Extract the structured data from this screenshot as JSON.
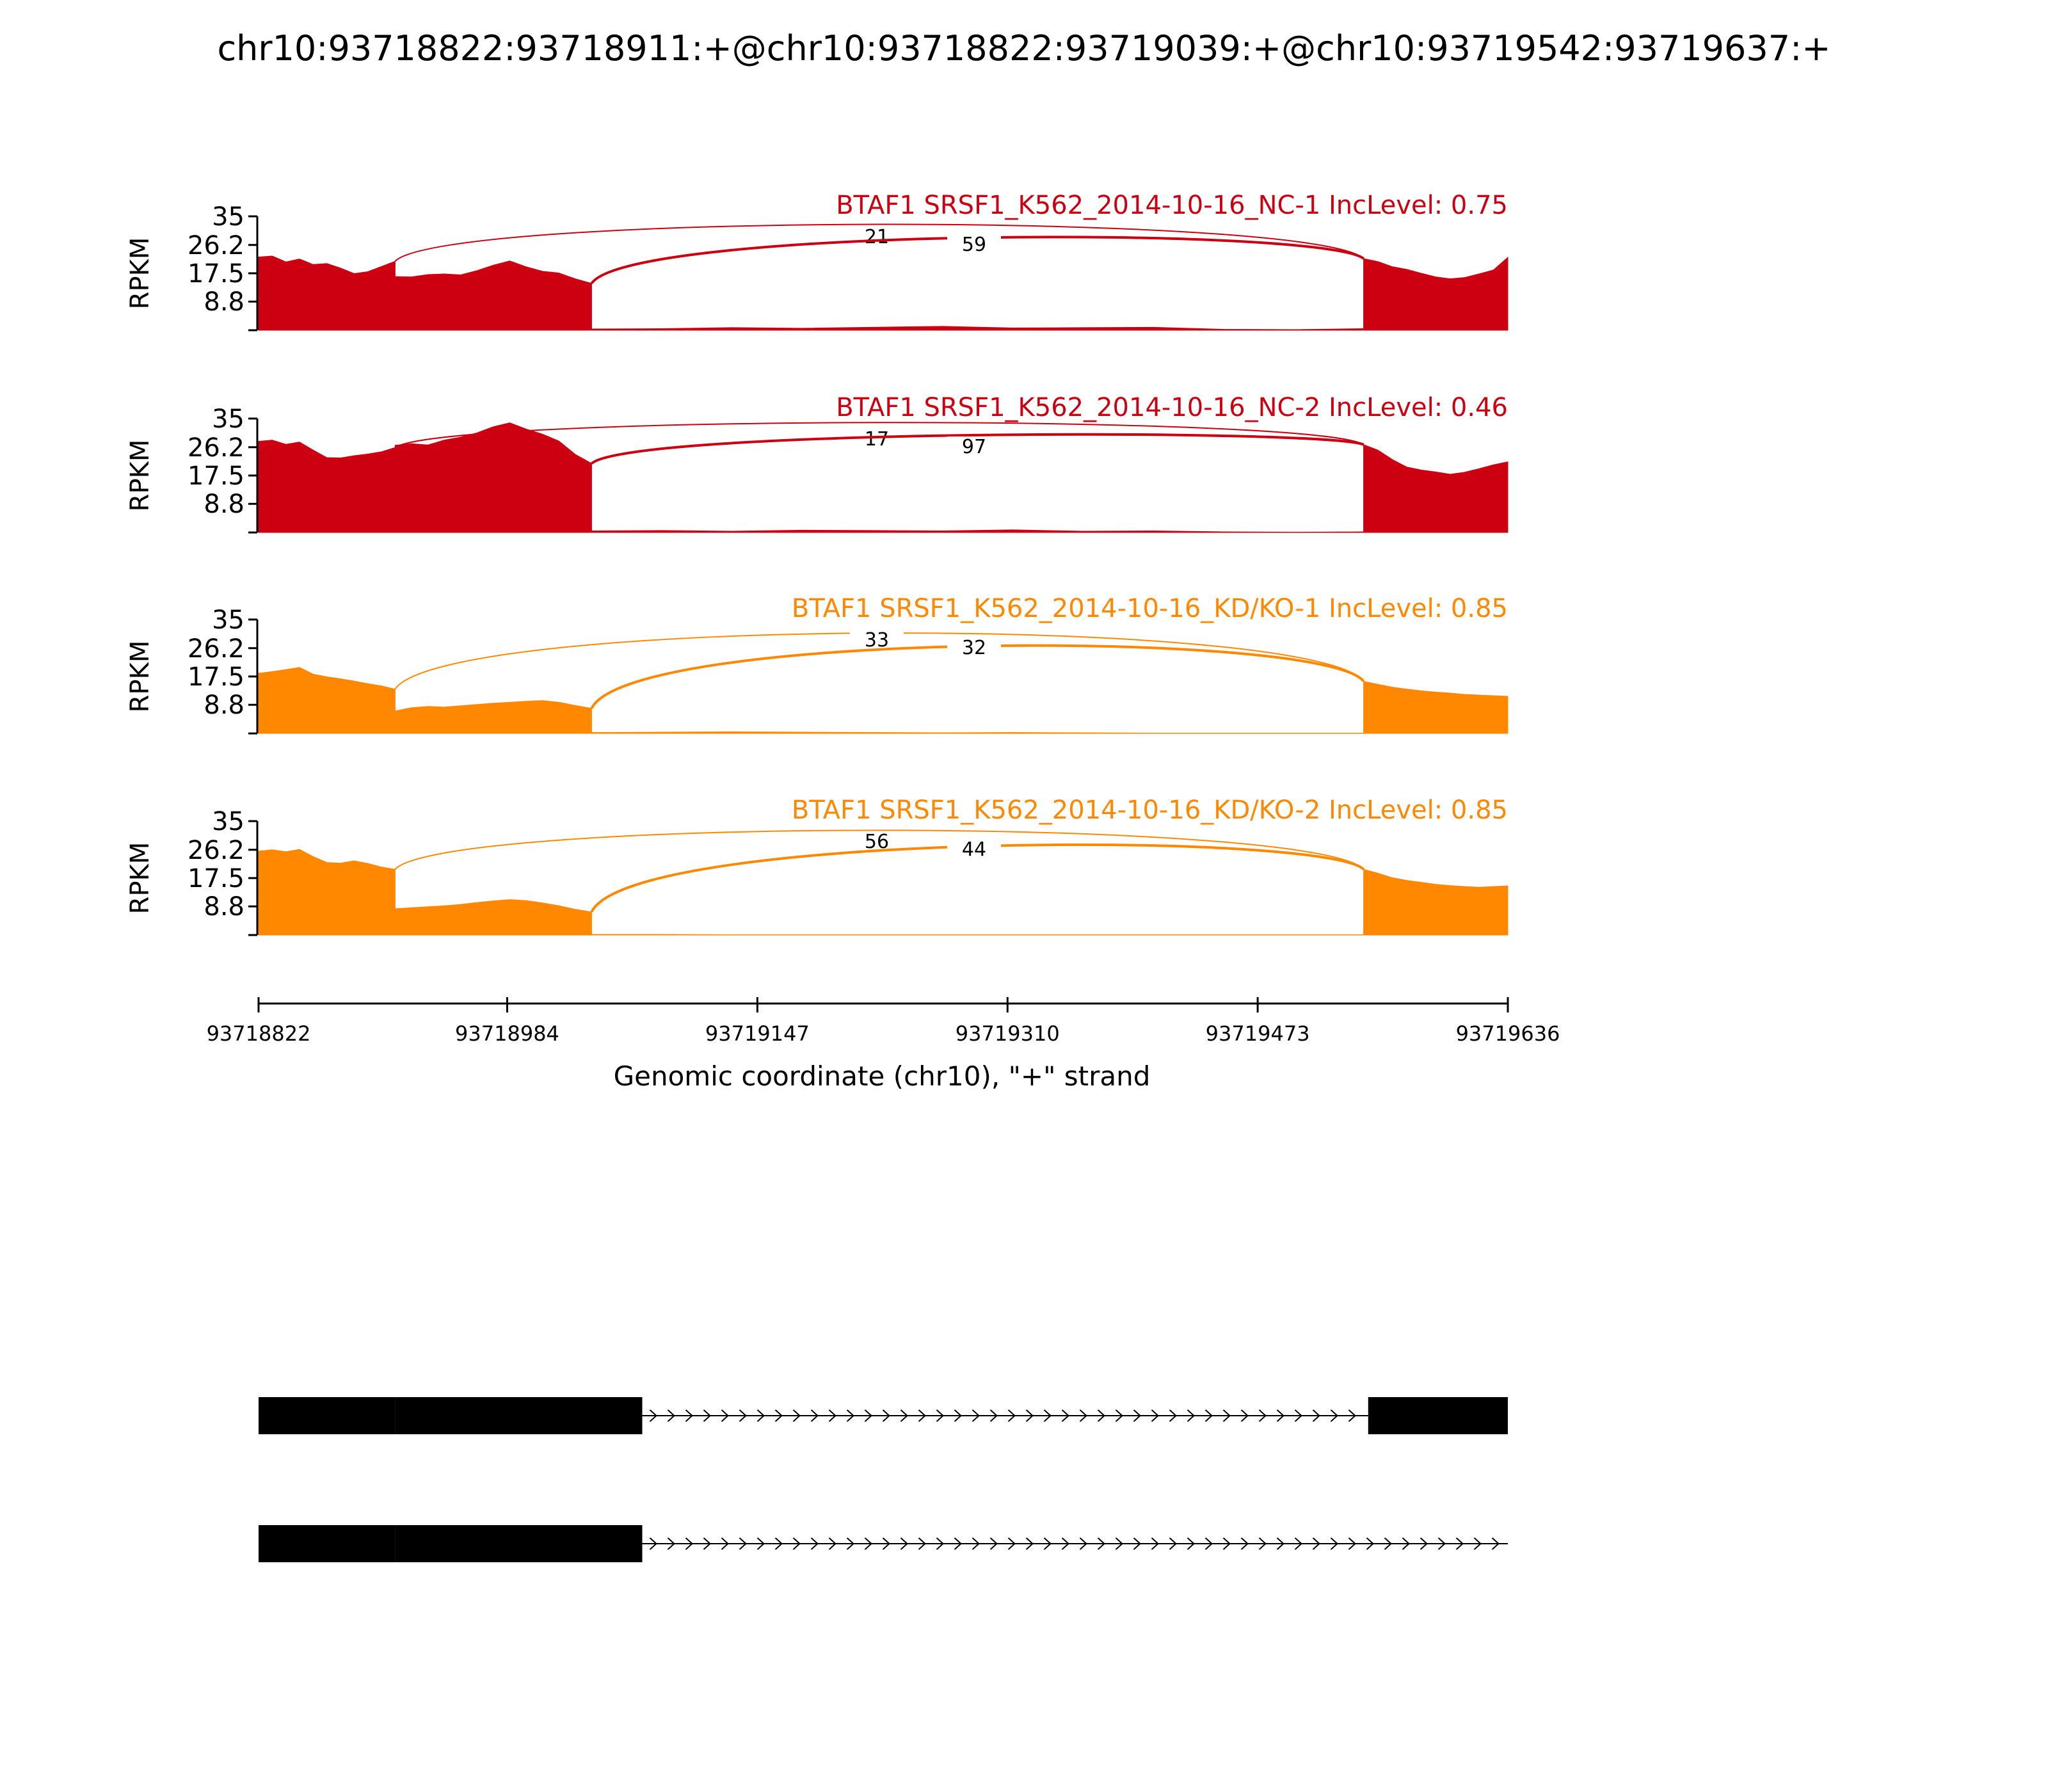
{
  "title": "chr10:93718822:93718911:+@chr10:93718822:93719039:+@chr10:93719542:93719637:+",
  "colors": {
    "nc": "#cc0011",
    "kd": "#ff8800",
    "axis": "#000000",
    "gene": "#000000"
  },
  "chart_data": {
    "type": "area",
    "title": "chr10:93718822:93718911:+@chr10:93718822:93719039:+@chr10:93719542:93719637:+",
    "xlabel": "Genomic coordinate (chr10), \"+\" strand",
    "xlim": [
      93718822,
      93719636
    ],
    "x_ticks": [
      "93718822",
      "93718984",
      "93719147",
      "93719310",
      "93719473",
      "93719636"
    ],
    "ylabel": "RPKM",
    "ylim": [
      0,
      35
    ],
    "y_ticks": [
      "35",
      "26.2",
      "17.5",
      "8.8"
    ],
    "grid": false,
    "tracks": [
      {
        "label": "BTAF1 SRSF1_K562_2014-10-16_NC-1 IncLevel: 0.75",
        "group": "nc",
        "junctions": [
          {
            "label": "21",
            "start": 93718911,
            "end": 93719542
          },
          {
            "label": "59",
            "start": 93719039,
            "end": 93719542
          }
        ],
        "coverage": [
          {
            "start": 93718822,
            "end": 93718911,
            "values": [
              22.5,
              22.8,
              21.0,
              21.9,
              20.2,
              20.5,
              19.1,
              17.4,
              18.0,
              19.6,
              21.2
            ]
          },
          {
            "start": 93718911,
            "end": 93719039,
            "values": [
              16.5,
              16.4,
              17.1,
              17.3,
              17.0,
              18.3,
              20.0,
              21.3,
              19.5,
              18.1,
              17.6,
              15.8,
              14.4
            ]
          },
          {
            "start": 93719039,
            "end": 93719542,
            "values": [
              0.4,
              0.5,
              0.8,
              0.6,
              0.9,
              1.2,
              0.7,
              0.8,
              0.9,
              0.3,
              0.2,
              0.5
            ]
          },
          {
            "start": 93719542,
            "end": 93719636,
            "values": [
              22.0,
              21.1,
              19.5,
              18.7,
              17.5,
              16.4,
              15.8,
              16.2,
              17.3,
              18.5,
              22.4
            ]
          }
        ]
      },
      {
        "label": "BTAF1 SRSF1_K562_2014-10-16_NC-2 IncLevel: 0.46",
        "group": "nc",
        "junctions": [
          {
            "label": "17",
            "start": 93718911,
            "end": 93719542
          },
          {
            "label": "97",
            "start": 93719039,
            "end": 93719542
          }
        ],
        "coverage": [
          {
            "start": 93718822,
            "end": 93718911,
            "values": [
              28.0,
              28.4,
              27.1,
              27.8,
              25.3,
              23.0,
              22.9,
              23.6,
              24.1,
              24.8,
              26.1
            ]
          },
          {
            "start": 93718911,
            "end": 93719039,
            "values": [
              26.8,
              27.3,
              26.9,
              28.4,
              29.3,
              30.6,
              32.5,
              33.7,
              31.8,
              30.2,
              28.1,
              24.0,
              21.2
            ]
          },
          {
            "start": 93719039,
            "end": 93719542,
            "values": [
              0.5,
              0.6,
              0.4,
              0.7,
              0.6,
              0.5,
              0.8,
              0.4,
              0.5,
              0.2,
              0.1,
              0.2
            ]
          },
          {
            "start": 93719542,
            "end": 93719636,
            "values": [
              27.0,
              25.3,
              22.4,
              20.1,
              19.2,
              18.6,
              17.9,
              18.5,
              19.6,
              20.8,
              21.7
            ]
          }
        ]
      },
      {
        "label": "BTAF1 SRSF1_K562_2014-10-16_KD/KO-1 IncLevel: 0.85",
        "group": "kd",
        "junctions": [
          {
            "label": "33",
            "start": 93718911,
            "end": 93719542
          },
          {
            "label": "32",
            "start": 93719039,
            "end": 93719542
          }
        ],
        "coverage": [
          {
            "start": 93718822,
            "end": 93718911,
            "values": [
              18.5,
              19.0,
              19.6,
              20.3,
              18.2,
              17.4,
              16.8,
              16.1,
              15.3,
              14.6,
              13.6
            ]
          },
          {
            "start": 93718911,
            "end": 93719039,
            "values": [
              6.9,
              7.9,
              8.3,
              8.1,
              8.5,
              8.9,
              9.3,
              9.6,
              9.9,
              10.1,
              9.6,
              8.6,
              7.7
            ]
          },
          {
            "start": 93719039,
            "end": 93719542,
            "values": [
              0.3,
              0.4,
              0.5,
              0.4,
              0.3,
              0.2,
              0.3,
              0.2,
              0.1,
              0.1,
              0.1,
              0.1
            ]
          },
          {
            "start": 93719542,
            "end": 93719636,
            "values": [
              16.0,
              15.1,
              14.2,
              13.6,
              13.1,
              12.7,
              12.4,
              12.0,
              11.8,
              11.6,
              11.4
            ]
          }
        ]
      },
      {
        "label": "BTAF1 SRSF1_K562_2014-10-16_KD/KO-2 IncLevel: 0.85",
        "group": "kd",
        "junctions": [
          {
            "label": "56",
            "start": 93718911,
            "end": 93719542
          },
          {
            "label": "44",
            "start": 93719039,
            "end": 93719542
          }
        ],
        "coverage": [
          {
            "start": 93718822,
            "end": 93718911,
            "values": [
              25.8,
              26.2,
              25.6,
              26.3,
              24.1,
              22.3,
              22.1,
              22.8,
              22.0,
              20.9,
              20.2
            ]
          },
          {
            "start": 93718911,
            "end": 93719039,
            "values": [
              8.1,
              8.4,
              8.7,
              9.0,
              9.4,
              10.0,
              10.5,
              10.9,
              10.6,
              9.9,
              9.0,
              7.9,
              7.1
            ]
          },
          {
            "start": 93719039,
            "end": 93719542,
            "values": [
              0.2,
              0.2,
              0.1,
              0.1,
              0.1,
              0.1,
              0.1,
              0.1,
              0.1,
              0.1,
              0.1,
              0.1
            ]
          },
          {
            "start": 93719542,
            "end": 93719636,
            "values": [
              20.2,
              19.0,
              17.6,
              16.8,
              16.2,
              15.6,
              15.2,
              14.9,
              14.7,
              14.9,
              15.1
            ]
          }
        ]
      }
    ],
    "gene_models": [
      {
        "exons": [
          [
            93718822,
            93718911
          ],
          [
            93718911,
            93719072
          ],
          [
            93719545,
            93719636
          ]
        ]
      },
      {
        "exons": [
          [
            93718822,
            93718911
          ],
          [
            93718911,
            93719072
          ]
        ]
      }
    ]
  }
}
